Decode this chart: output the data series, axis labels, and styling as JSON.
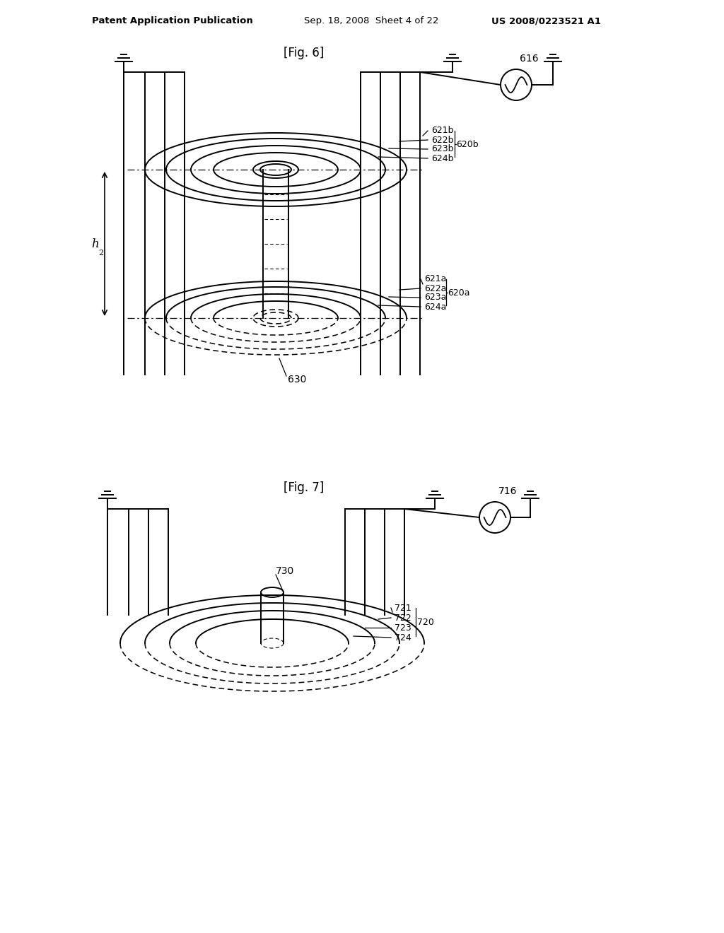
{
  "bg_color": "#ffffff",
  "line_color": "#000000",
  "fig_width": 10.24,
  "fig_height": 13.2,
  "header_text1": "Patent Application Publication",
  "header_text2": "Sep. 18, 2008  Sheet 4 of 22",
  "header_text3": "US 2008/0223521 A1",
  "fig6_label": "[Fig. 6]",
  "fig7_label": "[Fig. 7]",
  "label_616": "616",
  "label_716": "716",
  "label_630": "630",
  "label_730": "730",
  "label_h2": "h",
  "label_h2_sub": "2",
  "label_620a": "620a",
  "label_621a": "621a",
  "label_622a": "622a",
  "label_623a": "623a",
  "label_624a": "624a",
  "label_620b": "620b",
  "label_621b": "621b",
  "label_622b": "622b",
  "label_623b": "623b",
  "label_624b": "624b",
  "label_720": "720",
  "label_721": "721",
  "label_722": "722",
  "label_723": "723",
  "label_724": "724"
}
